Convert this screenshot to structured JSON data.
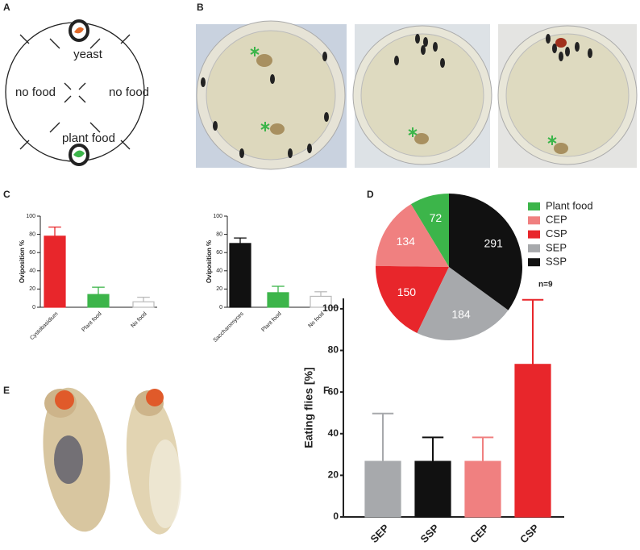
{
  "panel_labels": [
    "A",
    "B",
    "C",
    "D",
    "E",
    "F"
  ],
  "diagram": {
    "top": "yeast",
    "left": "no food",
    "right": "no food",
    "bottom": "plant food"
  },
  "chart_data": [
    {
      "type": "bar",
      "ylabel": "Oviposition %",
      "categories": [
        "Cystobasidium",
        "Plant food",
        "No food"
      ],
      "values": [
        78,
        14,
        6
      ],
      "errors": [
        10,
        8,
        5
      ],
      "colors": [
        "#e8262b",
        "#3cb54a",
        "#ffffff"
      ],
      "edgecolors": [
        "#e8262b",
        "#3cb54a",
        "#bbbbbb"
      ],
      "ylim": [
        0,
        100
      ],
      "yticks": [
        0,
        20,
        40,
        60,
        80,
        100
      ]
    },
    {
      "type": "bar",
      "ylabel": "Oviposition %",
      "categories": [
        "Saccharomyces",
        "Plant food",
        "No food"
      ],
      "values": [
        70,
        16,
        12
      ],
      "errors": [
        6,
        7,
        5
      ],
      "colors": [
        "#111111",
        "#3cb54a",
        "#ffffff"
      ],
      "edgecolors": [
        "#111111",
        "#3cb54a",
        "#bbbbbb"
      ],
      "ylim": [
        0,
        100
      ],
      "yticks": [
        0,
        20,
        40,
        60,
        80,
        100
      ]
    },
    {
      "type": "pie",
      "categories": [
        "Plant food",
        "CEP",
        "CSP",
        "SEP",
        "SSP"
      ],
      "values": [
        72,
        134,
        150,
        184,
        291
      ],
      "colors": [
        "#3cb54a",
        "#f08080",
        "#e8262b",
        "#a7a9ac",
        "#111111"
      ],
      "annotation": "n=9"
    },
    {
      "type": "bar",
      "ylabel": "Eating flies [%]",
      "categories": [
        "SEP",
        "SSP",
        "CEP",
        "CSP"
      ],
      "values": [
        26.7,
        26.7,
        26.7,
        73.3
      ],
      "errors": [
        23,
        11.5,
        11.5,
        31
      ],
      "colors": [
        "#a7a9ac",
        "#111111",
        "#f08080",
        "#e8262b"
      ],
      "edgecolors": [
        "#a7a9ac",
        "#111111",
        "#f08080",
        "#e8262b"
      ],
      "ylim": [
        0,
        105
      ],
      "yticks": [
        0,
        20,
        40,
        60,
        80,
        100
      ]
    }
  ]
}
